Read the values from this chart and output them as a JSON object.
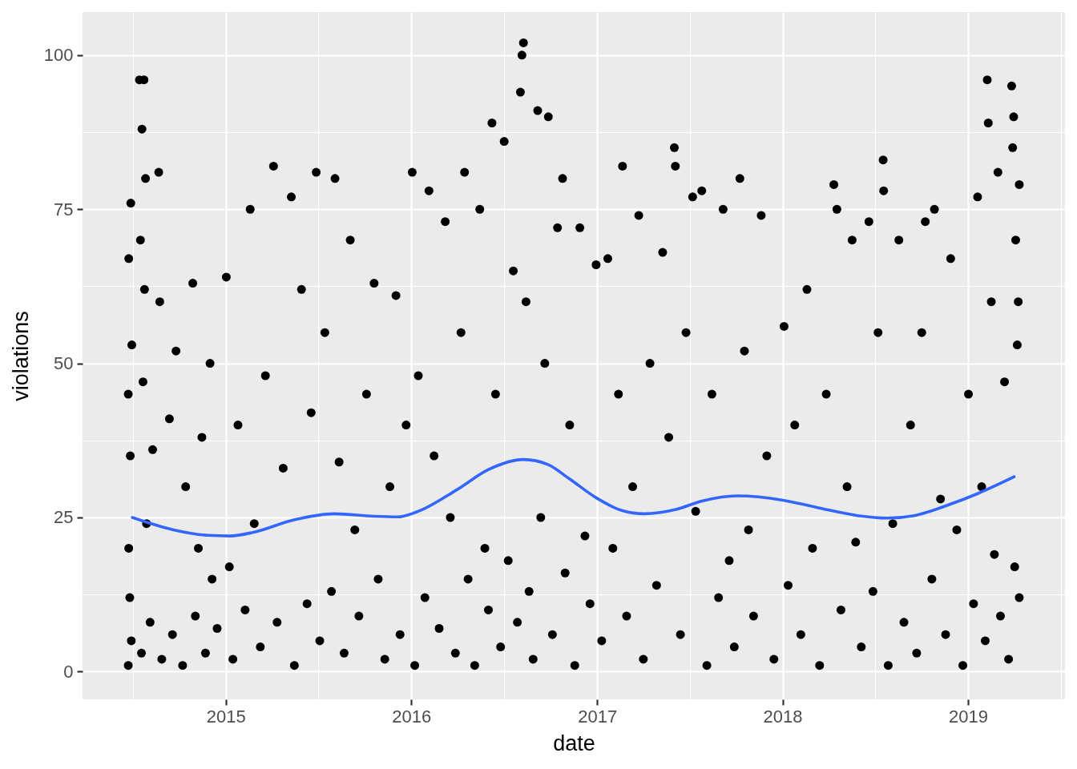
{
  "chart_data": {
    "type": "scatter",
    "xlabel": "date",
    "ylabel": "violations",
    "xlim": [
      "2014-03-25",
      "2019-07-11"
    ],
    "ylim": [
      -4.5,
      107
    ],
    "xticks": [
      {
        "value": "2014-07-02T12:00",
        "label": null
      },
      "2015",
      {
        "value": "2015-07-02T12:00",
        "label": null
      },
      "2016",
      {
        "value": "2016-07-02",
        "label": null
      },
      "2017",
      {
        "value": "2017-07-02T12:00",
        "label": null
      },
      "2018",
      {
        "value": "2018-07-02T12:00",
        "label": null
      },
      "2019",
      {
        "value": "2019-07-02T12:00",
        "label": null
      }
    ],
    "yticks": [
      0,
      {
        "value": 12.5,
        "label": null
      },
      25,
      {
        "value": 37.5,
        "label": null
      },
      50,
      {
        "value": 62.5,
        "label": null
      },
      75,
      {
        "value": 87.5,
        "label": null
      },
      100
    ],
    "grid": true,
    "series": [
      {
        "color": "#000000",
        "marker": "circle",
        "x": [
          "2014-06-23",
          "2014-06-23",
          "2014-06-24",
          "2014-06-24",
          "2014-06-26",
          "2014-06-27",
          "2014-06-28",
          "2014-06-29",
          "2014-06-30",
          "2014-07-15",
          "2014-07-17",
          "2014-07-19",
          "2014-07-20",
          "2014-07-22",
          "2014-07-24",
          "2014-07-25",
          "2014-07-27",
          "2014-07-29",
          "2014-08-05",
          "2014-08-10",
          "2014-08-22",
          "2014-08-24",
          "2014-08-28",
          "2014-09-12",
          "2014-09-18",
          "2014-09-25",
          "2014-10-08",
          "2014-10-14",
          "2014-10-28",
          "2014-11-02",
          "2014-11-08",
          "2014-11-15",
          "2014-11-22",
          "2014-12-01",
          "2014-12-05",
          "2014-12-15",
          "2015-01-02",
          "2015-01-08",
          "2015-01-15",
          "2015-01-25",
          "2015-02-08",
          "2015-02-18",
          "2015-02-26",
          "2015-03-10",
          "2015-03-20",
          "2015-04-05",
          "2015-04-12",
          "2015-04-24",
          "2015-05-10",
          "2015-05-16",
          "2015-05-30",
          "2015-06-10",
          "2015-06-18",
          "2015-06-28",
          "2015-07-05",
          "2015-07-15",
          "2015-07-28",
          "2015-08-04",
          "2015-08-12",
          "2015-08-22",
          "2015-09-03",
          "2015-09-12",
          "2015-09-20",
          "2015-10-05",
          "2015-10-20",
          "2015-10-28",
          "2015-11-10",
          "2015-11-20",
          "2015-12-02",
          "2015-12-10",
          "2015-12-22",
          "2016-01-03",
          "2016-01-08",
          "2016-01-15",
          "2016-01-28",
          "2016-02-05",
          "2016-02-15",
          "2016-02-25",
          "2016-03-08",
          "2016-03-18",
          "2016-03-28",
          "2016-04-08",
          "2016-04-15",
          "2016-04-22",
          "2016-05-05",
          "2016-05-15",
          "2016-05-25",
          "2016-06-01",
          "2016-06-08",
          "2016-06-15",
          "2016-06-25",
          "2016-07-02",
          "2016-07-10",
          "2016-07-20",
          "2016-07-28",
          "2016-08-03",
          "2016-08-06",
          "2016-08-09",
          "2016-08-14",
          "2016-08-20",
          "2016-08-28",
          "2016-09-06",
          "2016-09-12",
          "2016-09-20",
          "2016-09-27",
          "2016-10-05",
          "2016-10-15",
          "2016-10-25",
          "2016-10-30",
          "2016-11-08",
          "2016-11-18",
          "2016-11-28",
          "2016-12-08",
          "2016-12-18",
          "2016-12-30",
          "2017-01-10",
          "2017-01-22",
          "2017-02-01",
          "2017-02-12",
          "2017-02-20",
          "2017-02-28",
          "2017-03-12",
          "2017-03-24",
          "2017-04-02",
          "2017-04-15",
          "2017-04-28",
          "2017-05-10",
          "2017-05-22",
          "2017-06-02",
          "2017-06-04",
          "2017-06-14",
          "2017-06-25",
          "2017-07-08",
          "2017-07-14",
          "2017-07-26",
          "2017-08-05",
          "2017-08-15",
          "2017-08-28",
          "2017-09-06",
          "2017-09-18",
          "2017-09-28",
          "2017-10-09",
          "2017-10-18",
          "2017-10-26",
          "2017-11-05",
          "2017-11-20",
          "2017-12-01",
          "2017-12-15",
          "2018-01-04",
          "2018-01-12",
          "2018-01-25",
          "2018-02-06",
          "2018-02-18",
          "2018-03-01",
          "2018-03-15",
          "2018-03-28",
          "2018-04-12",
          "2018-04-18",
          "2018-04-26",
          "2018-05-08",
          "2018-05-18",
          "2018-05-25",
          "2018-06-05",
          "2018-06-20",
          "2018-06-28",
          "2018-07-08",
          "2018-07-18",
          "2018-07-19",
          "2018-07-28",
          "2018-08-06",
          "2018-08-18",
          "2018-08-28",
          "2018-09-10",
          "2018-09-22",
          "2018-10-02",
          "2018-10-09",
          "2018-10-22",
          "2018-10-27",
          "2018-11-08",
          "2018-11-18",
          "2018-11-28",
          "2018-12-10",
          "2018-12-22",
          "2019-01-02",
          "2019-01-12",
          "2019-01-20",
          "2019-01-28",
          "2019-02-04",
          "2019-02-08",
          "2019-02-10",
          "2019-02-16",
          "2019-02-22",
          "2019-03-01",
          "2019-03-06",
          "2019-03-14",
          "2019-03-22",
          "2019-03-28",
          "2019-03-30",
          "2019-04-01",
          "2019-04-03",
          "2019-04-05",
          "2019-04-08",
          "2019-04-10",
          "2019-04-12",
          "2019-04-12"
        ],
        "values": [
          1,
          45,
          20,
          67,
          12,
          35,
          76,
          5,
          53,
          96,
          70,
          3,
          88,
          47,
          96,
          62,
          80,
          24,
          8,
          36,
          81,
          60,
          2,
          41,
          6,
          52,
          1,
          30,
          63,
          9,
          20,
          38,
          3,
          50,
          15,
          7,
          64,
          17,
          2,
          40,
          10,
          75,
          24,
          4,
          48,
          82,
          8,
          33,
          77,
          1,
          62,
          11,
          42,
          81,
          5,
          55,
          13,
          80,
          34,
          3,
          70,
          23,
          9,
          45,
          63,
          15,
          2,
          30,
          61,
          6,
          40,
          81,
          1,
          48,
          12,
          78,
          35,
          7,
          73,
          25,
          3,
          55,
          81,
          15,
          1,
          75,
          20,
          10,
          89,
          45,
          4,
          86,
          18,
          65,
          8,
          94,
          100,
          102,
          60,
          13,
          2,
          91,
          25,
          50,
          90,
          6,
          72,
          80,
          16,
          40,
          1,
          72,
          22,
          11,
          66,
          5,
          67,
          20,
          45,
          82,
          9,
          30,
          74,
          2,
          50,
          14,
          68,
          38,
          85,
          82,
          6,
          55,
          77,
          26,
          78,
          1,
          45,
          12,
          75,
          18,
          4,
          80,
          52,
          23,
          9,
          74,
          35,
          2,
          56,
          14,
          40,
          6,
          62,
          20,
          1,
          45,
          79,
          75,
          10,
          30,
          70,
          21,
          4,
          73,
          13,
          55,
          83,
          78,
          1,
          24,
          70,
          8,
          40,
          3,
          55,
          73,
          15,
          75,
          28,
          6,
          67,
          23,
          1,
          45,
          11,
          77,
          30,
          5,
          96,
          89,
          60,
          19,
          81,
          9,
          47,
          2,
          95,
          85,
          90,
          17,
          70,
          53,
          60,
          79,
          12
        ]
      },
      {
        "type": "line",
        "color": "#3366ff",
        "x": [
          "2014-07-01",
          "2014-09-20",
          "2014-11-28",
          "2015-01-09",
          "2015-02-25",
          "2015-05-15",
          "2015-08-02",
          "2015-10-20",
          "2015-12-06",
          "2016-01-12",
          "2016-03-31",
          "2016-06-02",
          "2016-08-09",
          "2016-09-26",
          "2016-11-07",
          "2016-12-30",
          "2017-02-20",
          "2017-04-03",
          "2017-06-05",
          "2017-07-28",
          "2017-10-04",
          "2018-01-02",
          "2018-03-11",
          "2018-05-29",
          "2018-07-26",
          "2018-09-17",
          "2018-11-29",
          "2019-01-21",
          "2019-04-02"
        ],
        "values": [
          25.0,
          23.0,
          22.1,
          22.0,
          22.6,
          24.6,
          25.6,
          25.2,
          25.1,
          25.9,
          29.5,
          32.8,
          34.4,
          33.6,
          31.3,
          28.2,
          26.1,
          25.6,
          26.3,
          27.7,
          28.5,
          27.8,
          26.6,
          25.3,
          24.9,
          25.3,
          27.2,
          28.9,
          31.6
        ]
      }
    ]
  }
}
